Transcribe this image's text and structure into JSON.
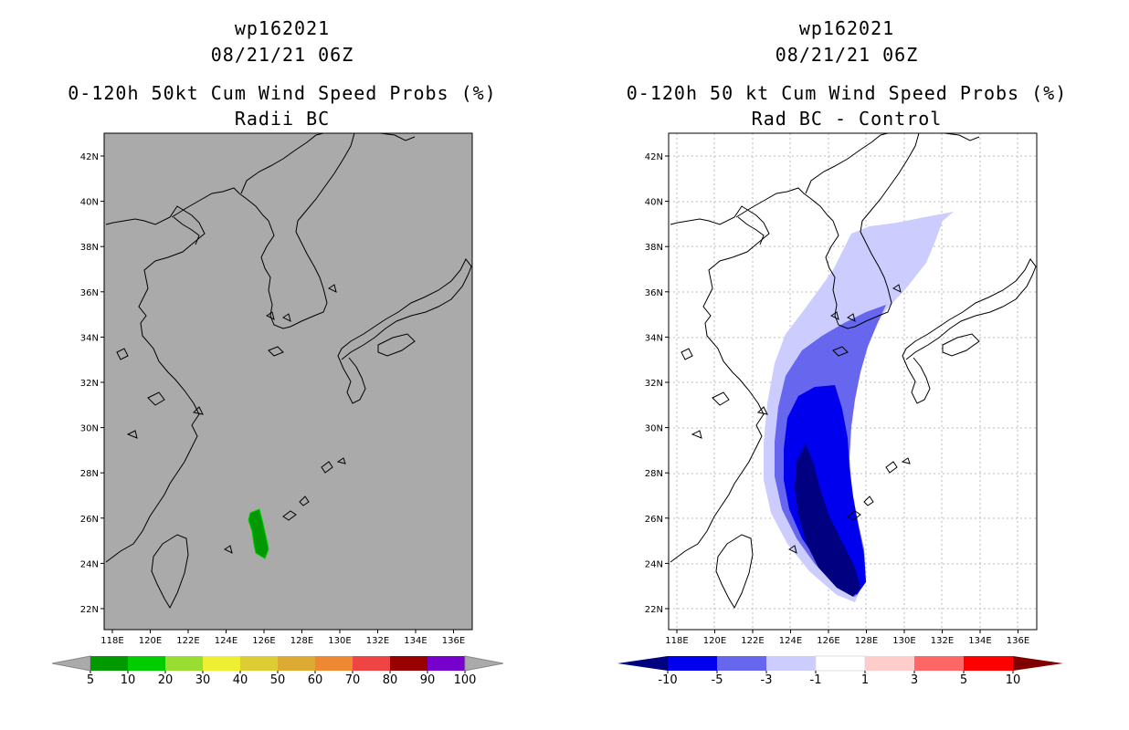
{
  "left_panel": {
    "title_lines": [
      "wp162021",
      "08/21/21 06Z",
      "0-120h 50kt Cum Wind Speed Probs (%)",
      "Radii BC"
    ],
    "map_background": "#aaaaaa",
    "colorbar": {
      "colors": [
        "#009900",
        "#00cc00",
        "#99dd33",
        "#eeee33",
        "#ddcc33",
        "#ddaa33",
        "#ee8833",
        "#ee4444",
        "#990000",
        "#7700cc"
      ],
      "labels": [
        "5",
        "10",
        "20",
        "30",
        "40",
        "50",
        "60",
        "70",
        "80",
        "90",
        "100"
      ],
      "end_color": "#aaaaaa"
    }
  },
  "right_panel": {
    "title_lines": [
      "wp162021",
      "08/21/21 06Z",
      "0-120h 50 kt Cum Wind Speed Probs (%)",
      "Rad BC - Control"
    ],
    "map_background": "#ffffff",
    "colorbar": {
      "colors": [
        "#0000ee",
        "#6666ee",
        "#ccccff",
        "#ffffff",
        "#ffcccc",
        "#ff6666",
        "#ff0000"
      ],
      "labels": [
        "-10",
        "-5",
        "-3",
        "-1",
        "1",
        "3",
        "5",
        "10"
      ],
      "low_end_color": "#000080",
      "high_end_color": "#800000"
    }
  },
  "axes": {
    "lon_ticks": [
      "118E",
      "120E",
      "122E",
      "124E",
      "126E",
      "128E",
      "130E",
      "132E",
      "134E",
      "136E"
    ],
    "lat_ticks": [
      "42N",
      "40N",
      "38N",
      "36N",
      "34N",
      "32N",
      "30N",
      "28N",
      "26N",
      "24N",
      "22N"
    ]
  },
  "colors": {
    "coast": "#000000",
    "prob_fill": "#009900",
    "diff_light": "#ccccff",
    "diff_mid": "#6666ee",
    "diff_strong": "#0000ee",
    "diff_darkest": "#000080",
    "grid": "#bbbbbb"
  }
}
